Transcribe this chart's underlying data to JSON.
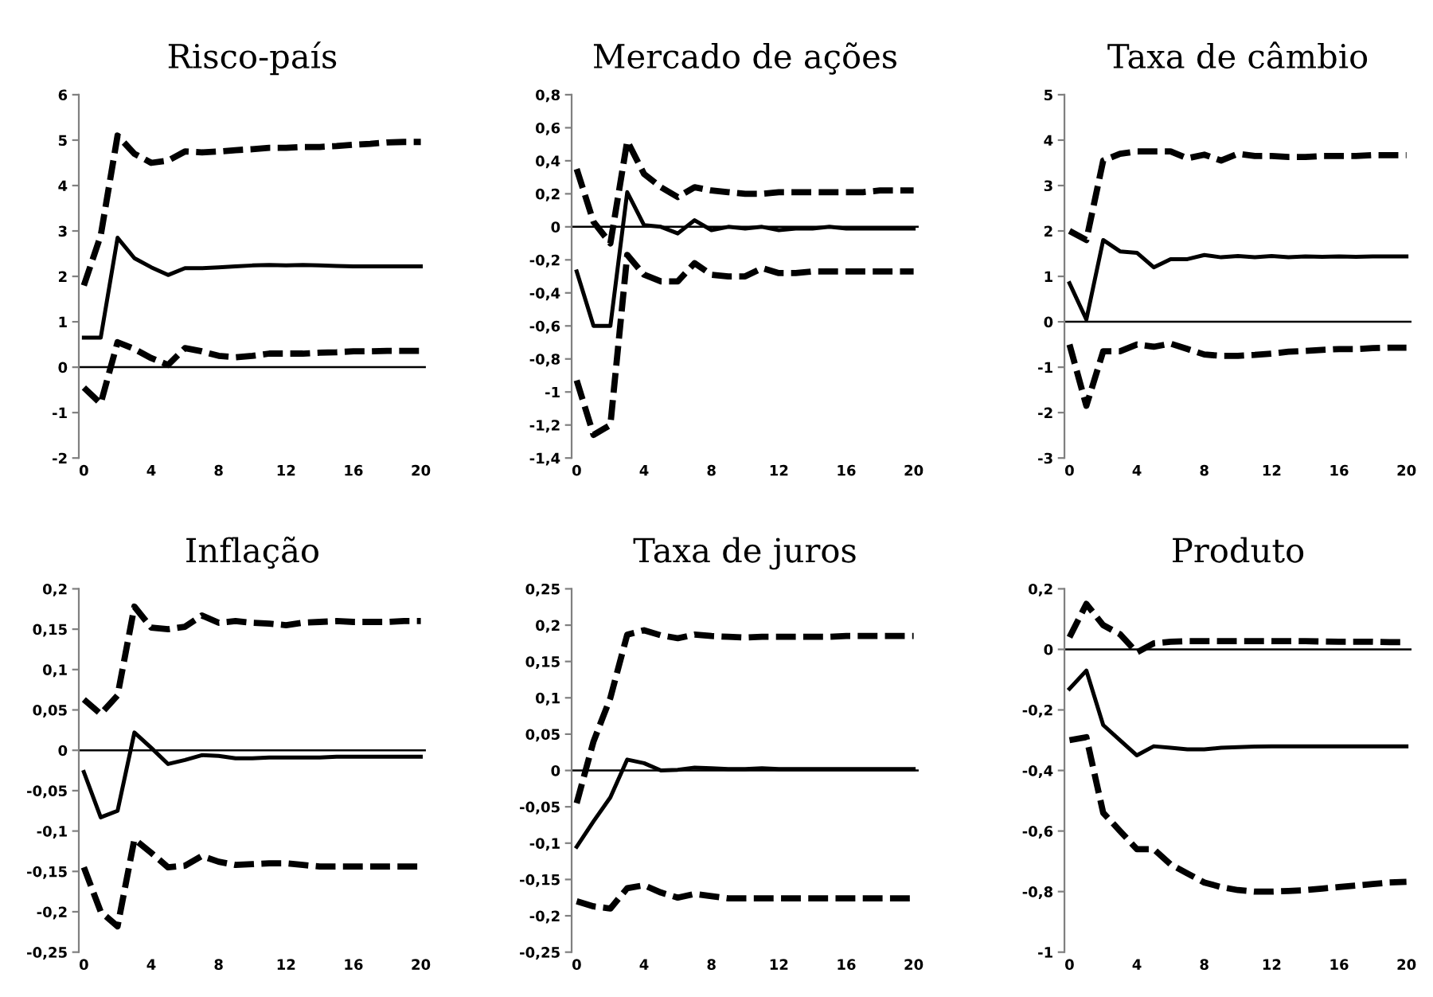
{
  "chart_data": [
    {
      "type": "line",
      "title": "Risco-país",
      "x": [
        0,
        1,
        2,
        3,
        4,
        5,
        6,
        7,
        8,
        9,
        10,
        11,
        12,
        13,
        14,
        15,
        16,
        17,
        18,
        19,
        20
      ],
      "xlim": [
        -0.3,
        20.3
      ],
      "xticks": [
        0,
        4,
        8,
        12,
        16,
        20
      ],
      "ylim": [
        -2,
        6
      ],
      "yticks": [
        -2,
        -1,
        0,
        1,
        2,
        3,
        4,
        5,
        6
      ],
      "ref_lines": [
        {
          "axis": "y",
          "value": 0
        }
      ],
      "series": [
        {
          "color": "#000000",
          "line_style": "dashed",
          "values": [
            1.8,
            2.9,
            5.1,
            4.7,
            4.5,
            4.55,
            4.75,
            4.73,
            4.75,
            4.78,
            4.8,
            4.83,
            4.83,
            4.85,
            4.85,
            4.87,
            4.9,
            4.92,
            4.95,
            4.96,
            4.96
          ]
        },
        {
          "color": "#000000",
          "line_style": "solid",
          "values": [
            0.65,
            0.65,
            2.85,
            2.4,
            2.2,
            2.03,
            2.18,
            2.18,
            2.2,
            2.22,
            2.24,
            2.25,
            2.24,
            2.25,
            2.24,
            2.23,
            2.22,
            2.22,
            2.22,
            2.22,
            2.22
          ]
        },
        {
          "color": "#000000",
          "line_style": "dashed",
          "values": [
            -0.45,
            -0.8,
            0.55,
            0.4,
            0.2,
            0.05,
            0.42,
            0.35,
            0.25,
            0.22,
            0.25,
            0.3,
            0.3,
            0.3,
            0.32,
            0.33,
            0.35,
            0.35,
            0.36,
            0.36,
            0.36
          ]
        }
      ]
    },
    {
      "type": "line",
      "title": "Mercado de ações",
      "x": [
        0,
        1,
        2,
        3,
        4,
        5,
        6,
        7,
        8,
        9,
        10,
        11,
        12,
        13,
        14,
        15,
        16,
        17,
        18,
        19,
        20
      ],
      "xlim": [
        -0.3,
        20.3
      ],
      "xticks": [
        0,
        4,
        8,
        12,
        16,
        20
      ],
      "ylim": [
        -1.4,
        0.8
      ],
      "yticks": [
        {
          "value": -1.4,
          "label": "-1,4"
        },
        {
          "value": -1.2,
          "label": "-1,2"
        },
        -1,
        {
          "value": -0.8,
          "label": "-0,8"
        },
        {
          "value": -0.6,
          "label": "-0,6"
        },
        {
          "value": -0.4,
          "label": "-0,4"
        },
        {
          "value": -0.2,
          "label": "-0,2"
        },
        0,
        {
          "value": 0.2,
          "label": "0,2"
        },
        {
          "value": 0.4,
          "label": "0,4"
        },
        {
          "value": 0.6,
          "label": "0,6"
        },
        {
          "value": 0.8,
          "label": "0,8"
        }
      ],
      "ref_lines": [
        {
          "axis": "y",
          "value": 0
        }
      ],
      "series": [
        {
          "color": "#000000",
          "line_style": "dashed",
          "values": [
            0.35,
            0.03,
            -0.1,
            0.52,
            0.32,
            0.24,
            0.18,
            0.24,
            0.22,
            0.21,
            0.2,
            0.2,
            0.21,
            0.21,
            0.21,
            0.21,
            0.21,
            0.21,
            0.22,
            0.22,
            0.22
          ]
        },
        {
          "color": "#000000",
          "line_style": "solid",
          "values": [
            -0.27,
            -0.6,
            -0.6,
            0.21,
            0.01,
            0.0,
            -0.04,
            0.04,
            -0.02,
            0.0,
            -0.01,
            0.0,
            -0.02,
            -0.01,
            -0.01,
            0.0,
            -0.01,
            -0.01,
            -0.01,
            -0.01,
            -0.01
          ]
        },
        {
          "color": "#000000",
          "line_style": "dashed",
          "values": [
            -0.93,
            -1.26,
            -1.2,
            -0.17,
            -0.29,
            -0.33,
            -0.33,
            -0.22,
            -0.29,
            -0.3,
            -0.3,
            -0.25,
            -0.28,
            -0.28,
            -0.27,
            -0.27,
            -0.27,
            -0.27,
            -0.27,
            -0.27,
            -0.27
          ]
        }
      ]
    },
    {
      "type": "line",
      "title": "Taxa de câmbio",
      "x": [
        0,
        1,
        2,
        3,
        4,
        5,
        6,
        7,
        8,
        9,
        10,
        11,
        12,
        13,
        14,
        15,
        16,
        17,
        18,
        19,
        20
      ],
      "xlim": [
        -0.3,
        20.3
      ],
      "xticks": [
        0,
        4,
        8,
        12,
        16,
        20
      ],
      "ylim": [
        -3,
        5
      ],
      "yticks": [
        -3,
        -2,
        -1,
        0,
        1,
        2,
        3,
        4,
        5
      ],
      "ref_lines": [
        {
          "axis": "y",
          "value": 0
        }
      ],
      "series": [
        {
          "color": "#000000",
          "line_style": "dashed",
          "values": [
            2.0,
            1.8,
            3.55,
            3.7,
            3.75,
            3.75,
            3.75,
            3.6,
            3.68,
            3.55,
            3.7,
            3.65,
            3.65,
            3.63,
            3.63,
            3.65,
            3.65,
            3.65,
            3.67,
            3.67,
            3.67
          ]
        },
        {
          "color": "#000000",
          "line_style": "solid",
          "values": [
            0.85,
            0.05,
            1.8,
            1.55,
            1.52,
            1.2,
            1.38,
            1.38,
            1.47,
            1.42,
            1.45,
            1.42,
            1.45,
            1.42,
            1.44,
            1.43,
            1.44,
            1.43,
            1.44,
            1.44,
            1.44
          ]
        },
        {
          "color": "#000000",
          "line_style": "dashed",
          "values": [
            -0.5,
            -1.85,
            -0.65,
            -0.65,
            -0.5,
            -0.55,
            -0.48,
            -0.6,
            -0.72,
            -0.75,
            -0.75,
            -0.73,
            -0.7,
            -0.66,
            -0.64,
            -0.62,
            -0.6,
            -0.6,
            -0.58,
            -0.57,
            -0.57
          ]
        }
      ]
    },
    {
      "type": "line",
      "title": "Inflação",
      "x": [
        0,
        1,
        2,
        3,
        4,
        5,
        6,
        7,
        8,
        9,
        10,
        11,
        12,
        13,
        14,
        15,
        16,
        17,
        18,
        19,
        20
      ],
      "xlim": [
        -0.3,
        20.3
      ],
      "xticks": [
        0,
        4,
        8,
        12,
        16,
        20
      ],
      "ylim": [
        -0.25,
        0.2
      ],
      "yticks": [
        {
          "value": -0.25,
          "label": "-0,25"
        },
        {
          "value": -0.2,
          "label": "-0,2"
        },
        {
          "value": -0.15,
          "label": "-0,15"
        },
        {
          "value": -0.1,
          "label": "-0,1"
        },
        {
          "value": -0.05,
          "label": "-0,05"
        },
        0,
        {
          "value": 0.05,
          "label": "0,05"
        },
        {
          "value": 0.1,
          "label": "0,1"
        },
        {
          "value": 0.15,
          "label": "0,15"
        },
        {
          "value": 0.2,
          "label": "0,2"
        }
      ],
      "ref_lines": [
        {
          "axis": "y",
          "value": 0
        }
      ],
      "series": [
        {
          "color": "#000000",
          "line_style": "dashed",
          "values": [
            0.063,
            0.045,
            0.068,
            0.178,
            0.152,
            0.15,
            0.153,
            0.167,
            0.158,
            0.16,
            0.158,
            0.157,
            0.155,
            0.158,
            0.159,
            0.16,
            0.159,
            0.159,
            0.159,
            0.16,
            0.16
          ]
        },
        {
          "color": "#000000",
          "line_style": "solid",
          "values": [
            -0.027,
            -0.083,
            -0.075,
            0.022,
            0.003,
            -0.017,
            -0.012,
            -0.006,
            -0.007,
            -0.01,
            -0.01,
            -0.009,
            -0.009,
            -0.009,
            -0.009,
            -0.008,
            -0.008,
            -0.008,
            -0.008,
            -0.008,
            -0.008
          ]
        },
        {
          "color": "#000000",
          "line_style": "dashed",
          "values": [
            -0.145,
            -0.2,
            -0.218,
            -0.11,
            -0.127,
            -0.145,
            -0.143,
            -0.131,
            -0.138,
            -0.142,
            -0.141,
            -0.14,
            -0.14,
            -0.142,
            -0.144,
            -0.144,
            -0.144,
            -0.144,
            -0.144,
            -0.144,
            -0.144
          ]
        }
      ]
    },
    {
      "type": "line",
      "title": "Taxa de juros",
      "x": [
        0,
        1,
        2,
        3,
        4,
        5,
        6,
        7,
        8,
        9,
        10,
        11,
        12,
        13,
        14,
        15,
        16,
        17,
        18,
        19,
        20
      ],
      "xlim": [
        -0.3,
        20.3
      ],
      "xticks": [
        0,
        4,
        8,
        12,
        16,
        20
      ],
      "ylim": [
        -0.25,
        0.25
      ],
      "yticks": [
        {
          "value": -0.25,
          "label": "-0,25"
        },
        {
          "value": -0.2,
          "label": "-0,2"
        },
        {
          "value": -0.15,
          "label": "-0,15"
        },
        {
          "value": -0.1,
          "label": "-0,1"
        },
        {
          "value": -0.05,
          "label": "-0,05"
        },
        0,
        {
          "value": 0.05,
          "label": "0,05"
        },
        {
          "value": 0.1,
          "label": "0,1"
        },
        {
          "value": 0.15,
          "label": "0,15"
        },
        {
          "value": 0.2,
          "label": "0,2"
        },
        {
          "value": 0.25,
          "label": "0,25"
        }
      ],
      "ref_lines": [
        {
          "axis": "y",
          "value": 0
        }
      ],
      "series": [
        {
          "color": "#000000",
          "line_style": "dashed",
          "values": [
            -0.045,
            0.04,
            0.1,
            0.187,
            0.193,
            0.186,
            0.182,
            0.187,
            0.185,
            0.184,
            0.183,
            0.184,
            0.184,
            0.184,
            0.184,
            0.184,
            0.185,
            0.185,
            0.185,
            0.185,
            0.185
          ]
        },
        {
          "color": "#000000",
          "line_style": "solid",
          "values": [
            -0.105,
            -0.07,
            -0.037,
            0.015,
            0.01,
            0.0,
            0.001,
            0.004,
            0.003,
            0.002,
            0.002,
            0.003,
            0.002,
            0.002,
            0.002,
            0.002,
            0.002,
            0.002,
            0.002,
            0.002,
            0.002
          ]
        },
        {
          "color": "#000000",
          "line_style": "dashed",
          "values": [
            -0.18,
            -0.187,
            -0.19,
            -0.162,
            -0.158,
            -0.168,
            -0.175,
            -0.17,
            -0.173,
            -0.176,
            -0.176,
            -0.176,
            -0.176,
            -0.176,
            -0.176,
            -0.176,
            -0.176,
            -0.176,
            -0.176,
            -0.176,
            -0.176
          ]
        }
      ]
    },
    {
      "type": "line",
      "title": "Produto",
      "x": [
        0,
        1,
        2,
        3,
        4,
        5,
        6,
        7,
        8,
        9,
        10,
        11,
        12,
        13,
        14,
        15,
        16,
        17,
        18,
        19,
        20
      ],
      "xlim": [
        -0.3,
        20.3
      ],
      "xticks": [
        0,
        4,
        8,
        12,
        16,
        20
      ],
      "ylim": [
        -1,
        0.2
      ],
      "yticks": [
        -1,
        {
          "value": -0.8,
          "label": "-0,8"
        },
        {
          "value": -0.6,
          "label": "-0,6"
        },
        {
          "value": -0.4,
          "label": "-0,4"
        },
        {
          "value": -0.2,
          "label": "-0,2"
        },
        0,
        {
          "value": 0.2,
          "label": "0,2"
        }
      ],
      "ref_lines": [
        {
          "axis": "y",
          "value": 0
        }
      ],
      "series": [
        {
          "color": "#000000",
          "line_style": "dashed",
          "values": [
            0.04,
            0.15,
            0.08,
            0.05,
            -0.01,
            0.02,
            0.025,
            0.027,
            0.027,
            0.027,
            0.027,
            0.027,
            0.027,
            0.027,
            0.027,
            0.026,
            0.025,
            0.025,
            0.025,
            0.024,
            0.024
          ]
        },
        {
          "color": "#000000",
          "line_style": "solid",
          "values": [
            -0.13,
            -0.07,
            -0.25,
            -0.3,
            -0.35,
            -0.32,
            -0.325,
            -0.33,
            -0.33,
            -0.325,
            -0.323,
            -0.321,
            -0.32,
            -0.32,
            -0.32,
            -0.32,
            -0.32,
            -0.32,
            -0.32,
            -0.32,
            -0.32
          ]
        },
        {
          "color": "#000000",
          "line_style": "dashed",
          "values": [
            -0.3,
            -0.29,
            -0.54,
            -0.6,
            -0.66,
            -0.66,
            -0.71,
            -0.74,
            -0.77,
            -0.785,
            -0.795,
            -0.8,
            -0.8,
            -0.798,
            -0.795,
            -0.79,
            -0.785,
            -0.78,
            -0.775,
            -0.77,
            -0.768
          ]
        }
      ]
    }
  ]
}
